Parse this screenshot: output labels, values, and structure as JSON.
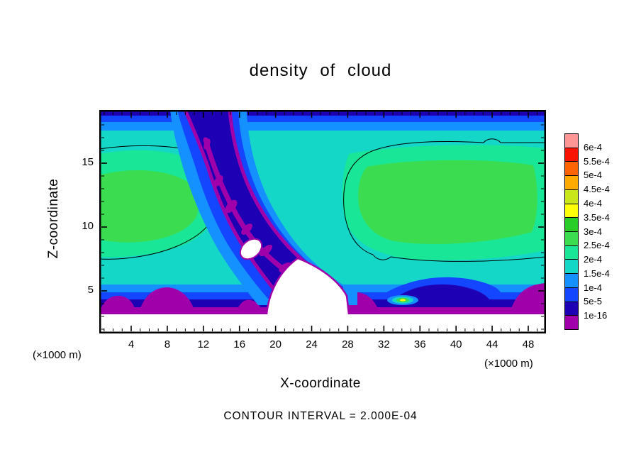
{
  "title": "density of cloud",
  "footer": "CONTOUR INTERVAL = 2.000E-04",
  "axes": {
    "x_label": "X-coordinate",
    "y_label": "Z-coordinate",
    "unit_left": "(×1000 m)",
    "unit_right": "(×1000 m)",
    "x_ticks": [
      4,
      8,
      12,
      16,
      20,
      24,
      28,
      32,
      36,
      40,
      44,
      48
    ],
    "y_ticks": [
      5,
      10,
      15
    ]
  },
  "colorbar": {
    "labels_top_to_bottom": [
      "6e-4",
      "5.5e-4",
      "5e-4",
      "4.5e-4",
      "4e-4",
      "3.5e-4",
      "3e-4",
      "2.5e-4",
      "2e-4",
      "1.5e-4",
      "1e-4",
      "5e-5",
      "1e-16"
    ],
    "cell_colors_top_to_bottom": [
      "#ff9696",
      "#fa1400",
      "#ff6400",
      "#ffaa00",
      "#c8e619",
      "#ffff0a",
      "#28cd28",
      "#3cdc50",
      "#19e696",
      "#14d7c8",
      "#1490ff",
      "#1446ff",
      "#1e00b4",
      "#a000aa"
    ]
  },
  "chart_data": {
    "type": "heatmap",
    "subtype": "filled-contour-tone-plot",
    "title": "density of cloud",
    "xlabel": "X-coordinate (×1000 m)",
    "ylabel": "Z-coordinate (×1000 m)",
    "xlim": [
      0.5,
      50
    ],
    "ylim": [
      1.8,
      19
    ],
    "x_ticks": [
      4,
      8,
      12,
      16,
      20,
      24,
      28,
      32,
      36,
      40,
      44,
      48
    ],
    "y_ticks": [
      5,
      10,
      15
    ],
    "grid": false,
    "legend_position": "right",
    "contour_interval": "2.000E-04",
    "contour_levels_drawn_black": [
      "2e-4"
    ],
    "tone_levels_low_to_high": [
      "1e-16",
      "5e-5",
      "1e-4",
      "1.5e-4",
      "2e-4",
      "2.5e-4",
      "3e-4",
      "3.5e-4",
      "4e-4",
      "4.5e-4",
      "5e-4",
      "5.5e-4",
      "6e-4"
    ],
    "tone_colors_low_to_high": [
      "#a000aa",
      "#1e00b4",
      "#1446ff",
      "#1490ff",
      "#14d7c8",
      "#19e696",
      "#3cdc50",
      "#28cd28",
      "#ffff0a",
      "#c8e619",
      "#ffaa00",
      "#ff6400",
      "#fa1400",
      "#ff9696"
    ],
    "field_features": [
      "broad turquoise cloud deck (≈1.5e-4 to 2e-4) filling most of the domain between z≈5 and z≈17",
      "two green higher-density cores (≈2.5e-4 to 3e-4): left core near x≈1-11, z≈8-14; right core near x≈28-48, z≈8-14",
      "thin black contour (the 2e-4 level) encircling the high-density regions on left and right",
      "dark-blue/purple low-density intrusion descending diagonally from the top near x≈12 down to x≈24 at cloud base",
      "white zero-density wedge near x≈18-26, z≈4-6 and white sub-cloud layer below z≈3",
      "thin purple (≈1e-16) sheet capping the surface near z≈3.5 with purple mounds near x≈5, x≈26 and the right corner",
      "blue-to-navy transition bands at cloud top (z≈17-19) and cloud base (z≈4-6)",
      "small bright green/yellow maximum embedded in the dark base layer near x≈34, z≈4"
    ]
  }
}
